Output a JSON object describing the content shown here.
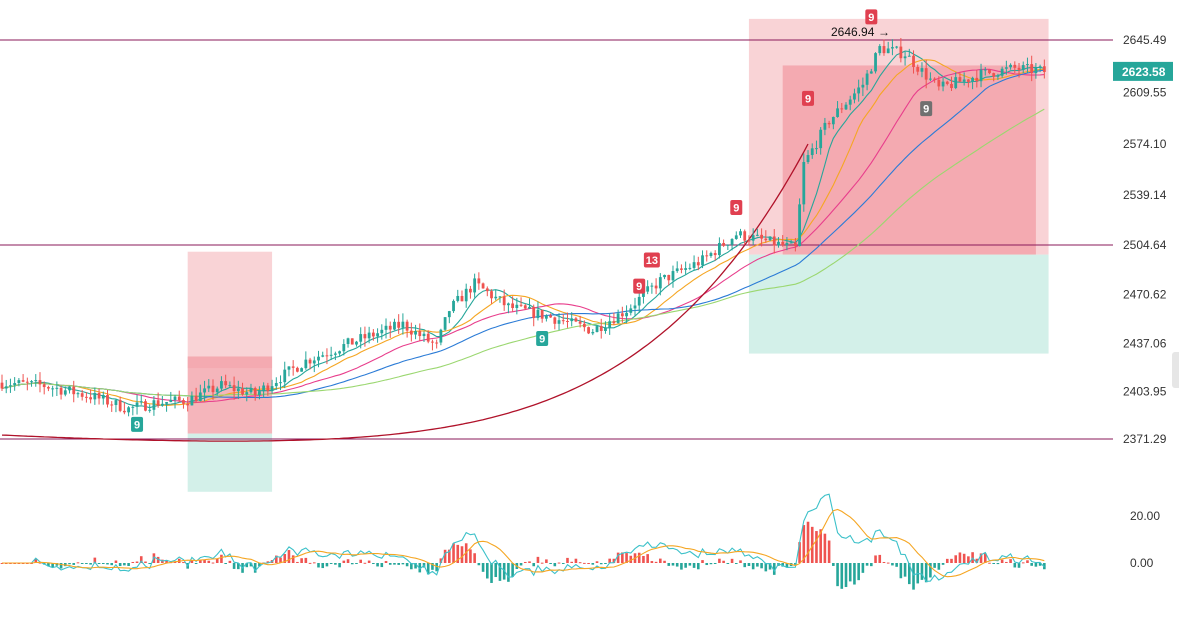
{
  "chart_data": {
    "type": "candlestick",
    "price_axis": {
      "ticks": [
        "2645.49",
        "2609.55",
        "2574.10",
        "2539.14",
        "2504.64",
        "2470.62",
        "2437.06",
        "2403.95",
        "2371.29"
      ],
      "tick_values": [
        2645.49,
        2609.55,
        2574.1,
        2539.14,
        2504.64,
        2470.62,
        2437.06,
        2403.95,
        2371.29
      ],
      "current_price": "2623.58",
      "current_price_color": "#26a69a"
    },
    "indicator_axis": {
      "ticks": [
        "20.00",
        "0.00"
      ],
      "tick_values": [
        20,
        0
      ]
    },
    "horizontal_lines": [
      2645.49,
      2504.64,
      2371.29
    ],
    "annotation": {
      "text": "2646.94",
      "value": 2646.94
    },
    "markers": [
      {
        "label": "9",
        "color": "#26a69a",
        "bar": 32,
        "price": 2381
      },
      {
        "label": "9",
        "color": "#26a69a",
        "bar": 128,
        "price": 2440
      },
      {
        "label": "9",
        "color": "#e04050",
        "bar": 151,
        "price": 2476
      },
      {
        "label": "13",
        "color": "#e04050",
        "bar": 154,
        "price": 2494
      },
      {
        "label": "9",
        "color": "#e04050",
        "bar": 174,
        "price": 2530
      },
      {
        "label": "9",
        "color": "#e04050",
        "bar": 191,
        "price": 2605
      },
      {
        "label": "9",
        "color": "#e04050",
        "bar": 206,
        "price": 2661
      },
      {
        "label": "9",
        "color": "#707070",
        "bar": 219,
        "price": 2598
      }
    ],
    "zones": [
      {
        "bar_from": 44,
        "bar_to": 64,
        "kind": "upper",
        "price_from": 2420,
        "price_to": 2500,
        "color": "#f8c8cc"
      },
      {
        "bar_from": 44,
        "bar_to": 64,
        "kind": "inner",
        "price_from": 2375,
        "price_to": 2428,
        "color": "#f29ca4"
      },
      {
        "bar_from": 44,
        "bar_to": 64,
        "kind": "lower",
        "price_from": 2335,
        "price_to": 2375,
        "color": "#c8ece4"
      },
      {
        "bar_from": 177,
        "bar_to": 248,
        "kind": "upper",
        "price_from": 2498,
        "price_to": 2660,
        "color": "#f8c8cc"
      },
      {
        "bar_from": 185,
        "bar_to": 245,
        "kind": "inner",
        "price_from": 2498,
        "price_to": 2628,
        "color": "#f29ca4"
      },
      {
        "bar_from": 177,
        "bar_to": 248,
        "kind": "lower",
        "price_from": 2430,
        "price_to": 2498,
        "color": "#c8ece4"
      }
    ],
    "colors": {
      "up": "#26a69a",
      "down": "#ef5350",
      "ma_fast": "#26a69a",
      "ma_orange": "#f5a623",
      "ma_pink": "#e83e8c",
      "ma_blue": "#2b7bd6",
      "ma_lime": "#9bd770",
      "arc": "#b0122a",
      "level_line": "#8a1a5a",
      "macd_line": "#3cc1c9",
      "signal_line": "#f5a623"
    }
  }
}
